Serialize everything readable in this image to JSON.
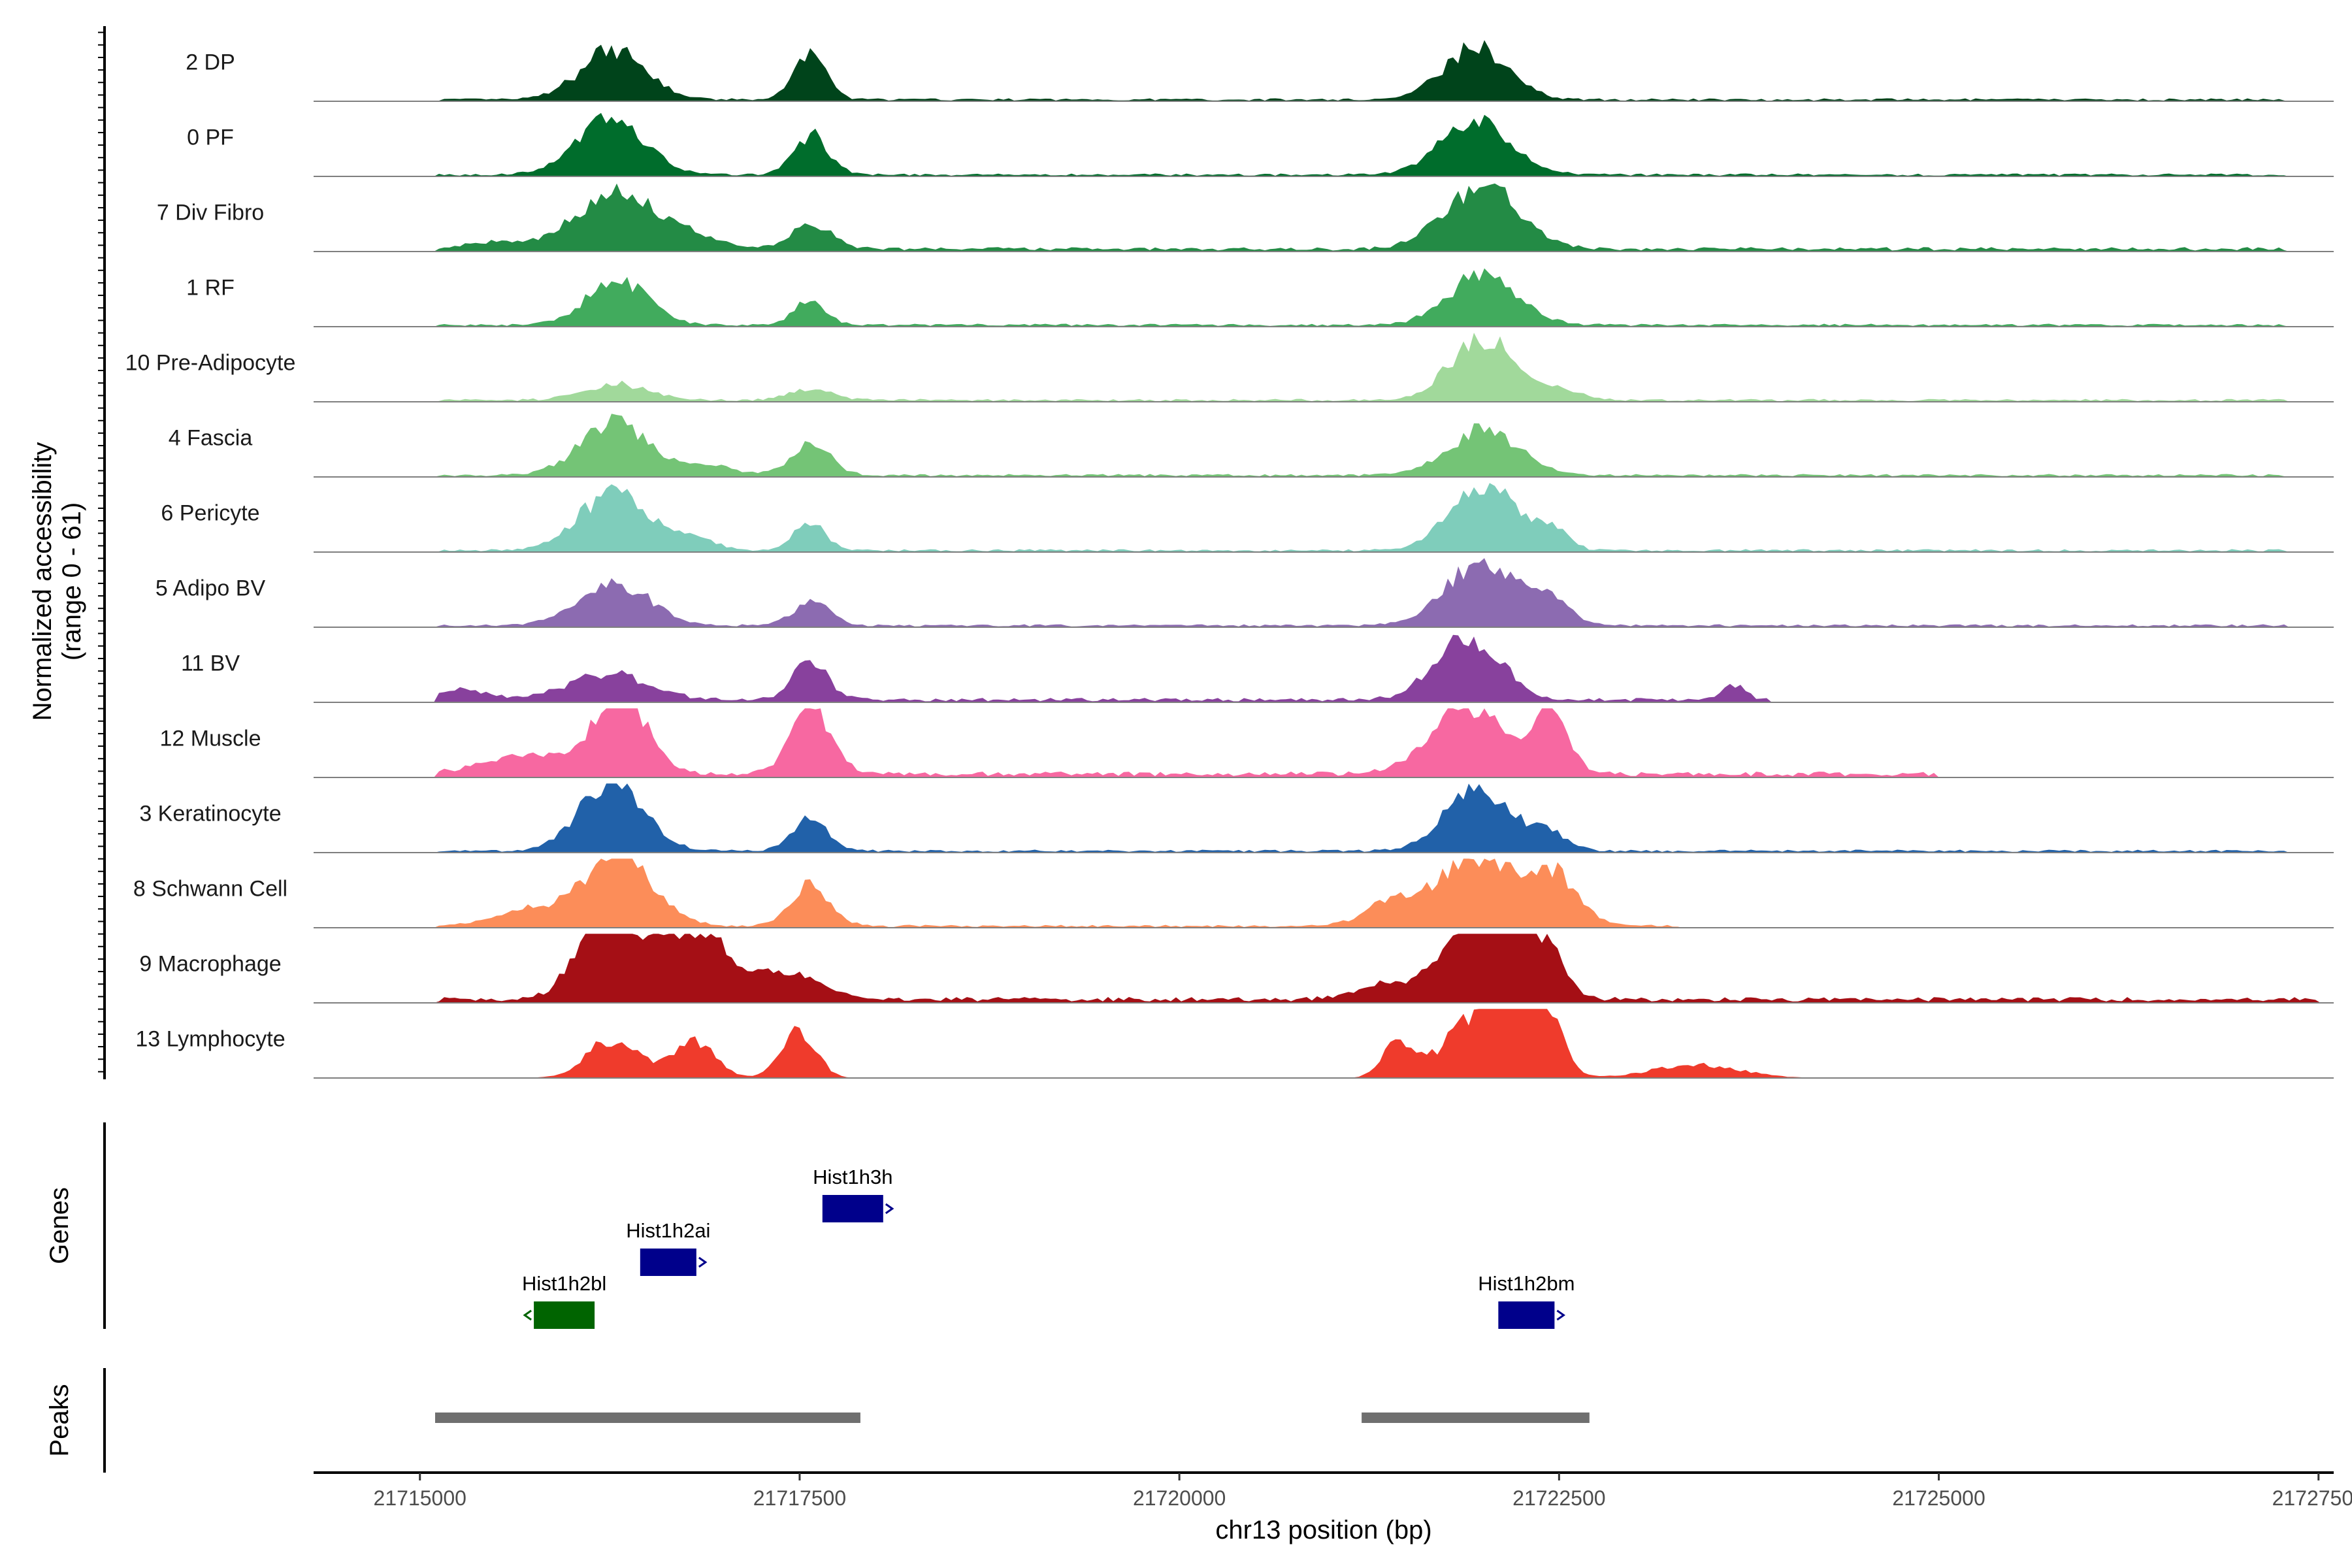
{
  "chart_data": {
    "type": "area",
    "title": "",
    "xlabel": "chr13 position (bp)",
    "ylabel": "Normalized accessibility\n(range 0 - 61)",
    "ylabel_lines": [
      "Normalized accessibility",
      "(range 0 - 61)"
    ],
    "ylim": [
      0,
      61
    ],
    "xlim": [
      21714300,
      21727600
    ],
    "xticks": [
      21715000,
      21717500,
      21720000,
      21722500,
      21725000,
      21727500
    ],
    "xtick_labels": [
      "21715000",
      "21717500",
      "21720000",
      "21722500",
      "21725000",
      "21727500"
    ],
    "panel_labels": {
      "genes": "Genes",
      "peaks": "Peaks"
    },
    "tracks": [
      {
        "name": "2 DP",
        "color": "#00441b",
        "peaks": [
          [
            21716270,
            44,
            300
          ],
          [
            21717570,
            38,
            150
          ],
          [
            21721950,
            46,
            300
          ]
        ],
        "background": 2,
        "extent": [
          21715100,
          21727300
        ]
      },
      {
        "name": "0 PF",
        "color": "#006d2c",
        "peaks": [
          [
            21716250,
            48,
            320
          ],
          [
            21717580,
            34,
            160
          ],
          [
            21721950,
            46,
            330
          ]
        ],
        "background": 2,
        "extent": [
          21715100,
          21727300
        ]
      },
      {
        "name": "7 Div Fibro",
        "color": "#238b45",
        "peaks": [
          [
            21716300,
            50,
            380
          ],
          [
            21717580,
            20,
            200
          ],
          [
            21722000,
            55,
            350
          ],
          [
            21715500,
            6,
            300
          ],
          [
            21716800,
            8,
            300
          ]
        ],
        "background": 3,
        "extent": [
          21715100,
          21727300
        ]
      },
      {
        "name": "1 RF",
        "color": "#41ab5d",
        "peaks": [
          [
            21716300,
            40,
            280
          ],
          [
            21717560,
            20,
            150
          ],
          [
            21722000,
            44,
            320
          ]
        ],
        "background": 2,
        "extent": [
          21715100,
          21727300
        ]
      },
      {
        "name": "10 Pre-Adipocyte",
        "color": "#a1d99b",
        "peaks": [
          [
            21716300,
            14,
            300
          ],
          [
            21717580,
            10,
            200
          ],
          [
            21722000,
            55,
            300
          ],
          [
            21722500,
            8,
            200
          ]
        ],
        "background": 2,
        "extent": [
          21715100,
          21727300
        ]
      },
      {
        "name": "4 Fascia",
        "color": "#74c476",
        "peaks": [
          [
            21716280,
            46,
            320
          ],
          [
            21717570,
            28,
            180
          ],
          [
            21722000,
            40,
            330
          ],
          [
            21716900,
            8,
            250
          ]
        ],
        "background": 2,
        "extent": [
          21715100,
          21727300
        ]
      },
      {
        "name": "6 Pericyte",
        "color": "#7fcdbb",
        "peaks": [
          [
            21716280,
            52,
            320
          ],
          [
            21717570,
            24,
            150
          ],
          [
            21722000,
            60,
            300
          ],
          [
            21722450,
            18,
            150
          ],
          [
            21716800,
            10,
            200
          ]
        ],
        "background": 2,
        "extent": [
          21715100,
          21727300
        ]
      },
      {
        "name": "5 Adipo BV",
        "color": "#8c6bb1",
        "peaks": [
          [
            21716280,
            38,
            330
          ],
          [
            21717580,
            20,
            170
          ],
          [
            21722000,
            58,
            330
          ],
          [
            21722450,
            20,
            180
          ]
        ],
        "background": 2,
        "extent": [
          21715100,
          21727300
        ]
      },
      {
        "name": "11 BV",
        "color": "#88419d",
        "peaks": [
          [
            21716230,
            22,
            380
          ],
          [
            21717570,
            34,
            160
          ],
          [
            21721900,
            56,
            300
          ],
          [
            21723650,
            14,
            100
          ],
          [
            21715300,
            10,
            200
          ]
        ],
        "background": 3,
        "extent": [
          21715100,
          21723900
        ]
      },
      {
        "name": "12 Muscle",
        "color": "#f768a1",
        "peaks": [
          [
            21716320,
            74,
            240
          ],
          [
            21717570,
            62,
            180
          ],
          [
            21721900,
            60,
            340
          ],
          [
            21722450,
            66,
            150
          ],
          [
            21715700,
            16,
            400
          ]
        ],
        "background": 4,
        "extent": [
          21715100,
          21725000
        ]
      },
      {
        "name": "3 Keratinocyte",
        "color": "#2161a9",
        "peaks": [
          [
            21716260,
            58,
            300
          ],
          [
            21717570,
            30,
            160
          ],
          [
            21721950,
            52,
            300
          ],
          [
            21722400,
            16,
            200
          ]
        ],
        "background": 2,
        "extent": [
          21715100,
          21727300
        ]
      },
      {
        "name": "8 Schwann Cell",
        "color": "#fc8d59",
        "peaks": [
          [
            21716300,
            62,
            330
          ],
          [
            21717570,
            36,
            180
          ],
          [
            21721950,
            62,
            330
          ],
          [
            21722450,
            46,
            240
          ],
          [
            21721400,
            22,
            250
          ],
          [
            21715700,
            14,
            300
          ]
        ],
        "background": 2,
        "extent": [
          21715100,
          21723300
        ]
      },
      {
        "name": "9 Macrophage",
        "color": "#a50f15",
        "peaks": [
          [
            21716250,
            74,
            280
          ],
          [
            21716800,
            64,
            300
          ],
          [
            21717400,
            24,
            300
          ],
          [
            21722000,
            86,
            300
          ],
          [
            21722400,
            44,
            180
          ],
          [
            21721400,
            14,
            300
          ]
        ],
        "background": 4,
        "extent": [
          21715100,
          21727500
        ]
      },
      {
        "name": "13 Lymphocyte",
        "color": "#ef3b2c",
        "peaks": [
          [
            21716270,
            34,
            240
          ],
          [
            21716800,
            32,
            200
          ],
          [
            21717490,
            44,
            160
          ],
          [
            21721450,
            32,
            150
          ],
          [
            21722050,
            70,
            330
          ],
          [
            21722400,
            54,
            150
          ],
          [
            21723400,
            12,
            400
          ]
        ],
        "background": 0,
        "extent": [
          21715400,
          21724200
        ]
      }
    ],
    "genes": [
      {
        "name": "Hist1h2bl",
        "start": 21715750,
        "end": 21716150,
        "strand": "-",
        "color": "#006400",
        "row": 2
      },
      {
        "name": "Hist1h2ai",
        "start": 21716450,
        "end": 21716820,
        "strand": "+",
        "color": "#00008b",
        "row": 1
      },
      {
        "name": "Hist1h3h",
        "start": 21717650,
        "end": 21718050,
        "strand": "+",
        "color": "#00008b",
        "row": 0
      },
      {
        "name": "Hist1h2bm",
        "start": 21722100,
        "end": 21722470,
        "strand": "+",
        "color": "#00008b",
        "row": 2
      }
    ],
    "peak_regions": [
      {
        "start": 21715100,
        "end": 21717900
      },
      {
        "start": 21721200,
        "end": 21722700
      }
    ]
  }
}
